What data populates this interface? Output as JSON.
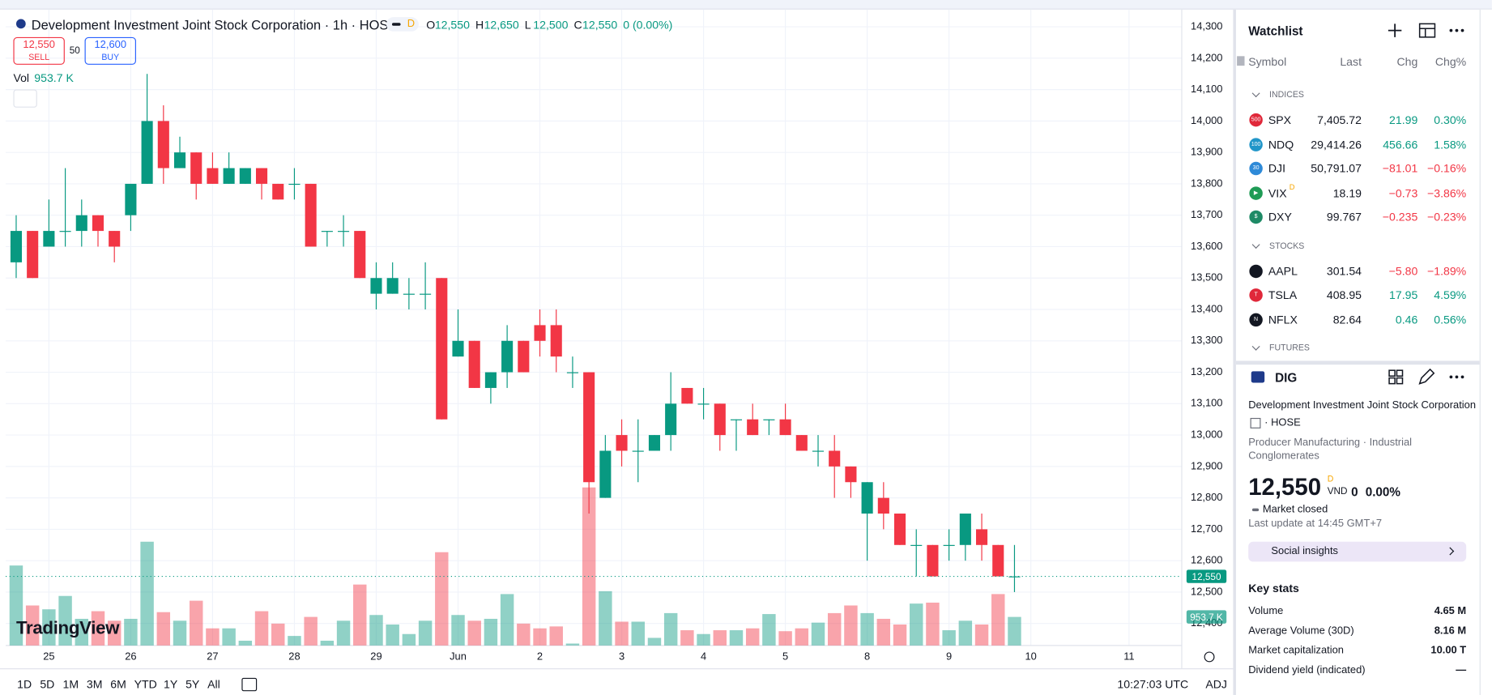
{
  "chart_data": {
    "type": "candlestick",
    "title": "Development Investment Joint Stock Corporation · 1h · HOSE",
    "interval_badge": "D",
    "header": [
      {
        "k": "O",
        "v": "12,550"
      },
      {
        "k": "H",
        "v": "12,650"
      },
      {
        "k": "L",
        "v": "12,500"
      },
      {
        "k": "C",
        "v": "12,550"
      }
    ],
    "change": "0 (0.00%)",
    "sell": {
      "price": "12,550",
      "label": "SELL"
    },
    "spread": "50",
    "buy": {
      "price": "12,600",
      "label": "BUY"
    },
    "volume_title": "Vol",
    "volume_label": "953.7 K",
    "logo": "TradingView",
    "up_color": "#089981",
    "down_color": "#f23645",
    "open": [
      13550,
      13650,
      13600,
      13650,
      13650,
      13700,
      13650,
      13700,
      13800,
      14000,
      13850,
      13900,
      13850,
      13800,
      13800,
      13850,
      13800,
      13800,
      13800,
      13650,
      13650,
      13650,
      13450,
      13450,
      13450,
      13450,
      13500,
      13250,
      13300,
      13150,
      13200,
      13300,
      13350,
      13350,
      13200,
      13200,
      12800,
      13000,
      12950,
      12950,
      13000,
      13150,
      13100,
      13100,
      13050,
      13050,
      13050,
      13050,
      13000,
      12950,
      12950,
      12900,
      12750,
      12800,
      12750,
      12650,
      12650,
      12650,
      12650,
      12700,
      12650,
      12550
    ],
    "high": [
      13700,
      13650,
      13750,
      13850,
      13750,
      13700,
      13650,
      13800,
      14150,
      14050,
      13950,
      13900,
      13900,
      13900,
      13850,
      13850,
      13800,
      13850,
      13800,
      13650,
      13700,
      13650,
      13550,
      13550,
      13500,
      13550,
      13500,
      13400,
      13300,
      13200,
      13350,
      13300,
      13400,
      13400,
      13250,
      13200,
      13000,
      13050,
      13050,
      13000,
      13200,
      13150,
      13150,
      13100,
      13050,
      13100,
      13050,
      13100,
      13000,
      13000,
      13000,
      12900,
      12850,
      12850,
      12750,
      12700,
      12650,
      12700,
      12750,
      12750,
      12650,
      12650
    ],
    "low": [
      13500,
      13500,
      13600,
      13600,
      13600,
      13600,
      13550,
      13650,
      13800,
      13800,
      13850,
      13750,
      13800,
      13800,
      13800,
      13750,
      13750,
      13750,
      13600,
      13600,
      13600,
      13500,
      13400,
      13450,
      13400,
      13400,
      13050,
      13250,
      13150,
      13100,
      13150,
      13200,
      13250,
      13200,
      13150,
      12750,
      12800,
      12900,
      12850,
      12950,
      12950,
      13100,
      13050,
      12950,
      12950,
      13000,
      13000,
      13000,
      12950,
      12900,
      12800,
      12800,
      12600,
      12700,
      12650,
      12550,
      12550,
      12600,
      12600,
      12600,
      12550,
      12500
    ],
    "close": [
      13650,
      13500,
      13650,
      13650,
      13700,
      13650,
      13600,
      13800,
      14000,
      13850,
      13900,
      13800,
      13800,
      13850,
      13850,
      13800,
      13750,
      13800,
      13600,
      13650,
      13650,
      13500,
      13500,
      13500,
      13450,
      13450,
      13050,
      13300,
      13150,
      13200,
      13300,
      13200,
      13300,
      13250,
      13200,
      12850,
      12950,
      12950,
      12950,
      13000,
      13100,
      13100,
      13100,
      13000,
      13050,
      13000,
      13050,
      13000,
      12950,
      12950,
      12900,
      12850,
      12850,
      12750,
      12650,
      12650,
      12550,
      12650,
      12750,
      12650,
      12550,
      12550
    ],
    "volume": [
      2671,
      1336,
      1208,
      1654,
      890,
      1145,
      827,
      890,
      3466,
      1113,
      827,
      1495,
      572,
      572,
      159,
      1145,
      731,
      318,
      954,
      159,
      827,
      2035,
      1018,
      700,
      382,
      827,
      3116,
      1018,
      827,
      890,
      1717,
      731,
      572,
      636,
      64,
      5279,
      1813,
      795,
      795,
      254,
      1081,
      509,
      382,
      509,
      509,
      572,
      1049,
      477,
      572,
      763,
      1081,
      1336,
      1081,
      890,
      700,
      1399,
      1431,
      509,
      827,
      700,
      1717,
      953.7
    ],
    "xticks": [
      {
        "value": 2,
        "label": "25"
      },
      {
        "value": 7,
        "label": "26"
      },
      {
        "value": 12,
        "label": "27"
      },
      {
        "value": 17,
        "label": "28"
      },
      {
        "value": 22,
        "label": "29"
      },
      {
        "value": 27,
        "label": "Jun"
      },
      {
        "value": 32,
        "label": "2"
      },
      {
        "value": 37,
        "label": "3"
      },
      {
        "value": 42,
        "label": "4"
      },
      {
        "value": 47,
        "label": "5"
      },
      {
        "value": 52,
        "label": "8"
      },
      {
        "value": 57,
        "label": "9"
      },
      {
        "value": 62,
        "label": "10"
      },
      {
        "value": 68,
        "label": "11"
      }
    ],
    "ylim": [
      12330,
      14355
    ],
    "yticks": [
      {
        "value": 12400,
        "label": "12,400"
      },
      {
        "value": 12500,
        "label": "12,500"
      },
      {
        "value": 12600,
        "label": "12,600"
      },
      {
        "value": 12700,
        "label": "12,700"
      },
      {
        "value": 12800,
        "label": "12,800"
      },
      {
        "value": 12900,
        "label": "12,900"
      },
      {
        "value": 13000,
        "label": "13,000"
      },
      {
        "value": 13100,
        "label": "13,100"
      },
      {
        "value": 13200,
        "label": "13,200"
      },
      {
        "value": 13300,
        "label": "13,300"
      },
      {
        "value": 13400,
        "label": "13,400"
      },
      {
        "value": 13500,
        "label": "13,500"
      },
      {
        "value": 13600,
        "label": "13,600"
      },
      {
        "value": 13700,
        "label": "13,700"
      },
      {
        "value": 13800,
        "label": "13,800"
      },
      {
        "value": 13900,
        "label": "13,900"
      },
      {
        "value": 14000,
        "label": "14,000"
      },
      {
        "value": 14100,
        "label": "14,100"
      },
      {
        "value": 14200,
        "label": "14,200"
      },
      {
        "value": 14300,
        "label": "14,300"
      }
    ],
    "price_line": {
      "value": 12550,
      "label": "12,550"
    },
    "grid": true
  },
  "toolbar": {
    "ranges": [
      "1D",
      "5D",
      "1M",
      "3M",
      "6M",
      "YTD",
      "1Y",
      "5Y",
      "All"
    ],
    "time": "10:27:03 UTC",
    "adj": "ADJ"
  },
  "watchlist": {
    "title": "Watchlist",
    "columns": [
      "Symbol",
      "Last",
      "Chg",
      "Chg%"
    ],
    "sections": [
      {
        "name": "INDICES",
        "rows": [
          {
            "badge": "500",
            "badge_color": "#e0283a",
            "symbol": "SPX",
            "last": "7,405.72",
            "chg": "21.99",
            "chgp": "0.30%"
          },
          {
            "badge": "100",
            "badge_color": "#2196c9",
            "symbol": "NDQ",
            "last": "29,414.26",
            "chg": "456.66",
            "chgp": "1.58%"
          },
          {
            "badge": "30",
            "badge_color": "#2e8ad8",
            "symbol": "DJI",
            "last": "50,791.07",
            "chg": "−81.01",
            "chgp": "−0.16%"
          },
          {
            "badge": "▶",
            "badge_color": "#1e9b55",
            "symbol": "VIX",
            "sup": "D",
            "last": "18.19",
            "chg": "−0.73",
            "chgp": "−3.86%"
          },
          {
            "badge": "$",
            "badge_color": "#1e8a66",
            "symbol": "DXY",
            "last": "99.767",
            "chg": "−0.235",
            "chgp": "−0.23%"
          }
        ]
      },
      {
        "name": "STOCKS",
        "rows": [
          {
            "badge": "",
            "badge_color": "#131722",
            "symbol": "AAPL",
            "last": "301.54",
            "chg": "−5.80",
            "chgp": "−1.89%"
          },
          {
            "badge": "T",
            "badge_color": "#e0283a",
            "symbol": "TSLA",
            "last": "408.95",
            "chg": "17.95",
            "chgp": "4.59%"
          },
          {
            "badge": "N",
            "badge_color": "#131722",
            "symbol": "NFLX",
            "last": "82.64",
            "chg": "0.46",
            "chgp": "0.56%"
          }
        ]
      },
      {
        "name": "FUTURES",
        "rows": []
      }
    ]
  },
  "details": {
    "symbol": "DIG",
    "name": "Development Investment Joint Stock Corporation",
    "exchange": "· HOSE",
    "sector": "Producer Manufacturing · Industrial Conglomerates",
    "price": "12,550",
    "price_badge": "D",
    "currency": "VND",
    "change": "0",
    "change_pct": "0.00%",
    "status": "Market closed",
    "last_update": "Last update at 14:45 GMT+7",
    "social": "Social insights",
    "key_stats_title": "Key stats",
    "key_stats": [
      {
        "label": "Volume",
        "value": "4.65 M"
      },
      {
        "label": "Average Volume (30D)",
        "value": "8.16 M"
      },
      {
        "label": "Market capitalization",
        "value": "10.00 T"
      },
      {
        "label": "Dividend yield (indicated)",
        "value": "—"
      }
    ]
  }
}
